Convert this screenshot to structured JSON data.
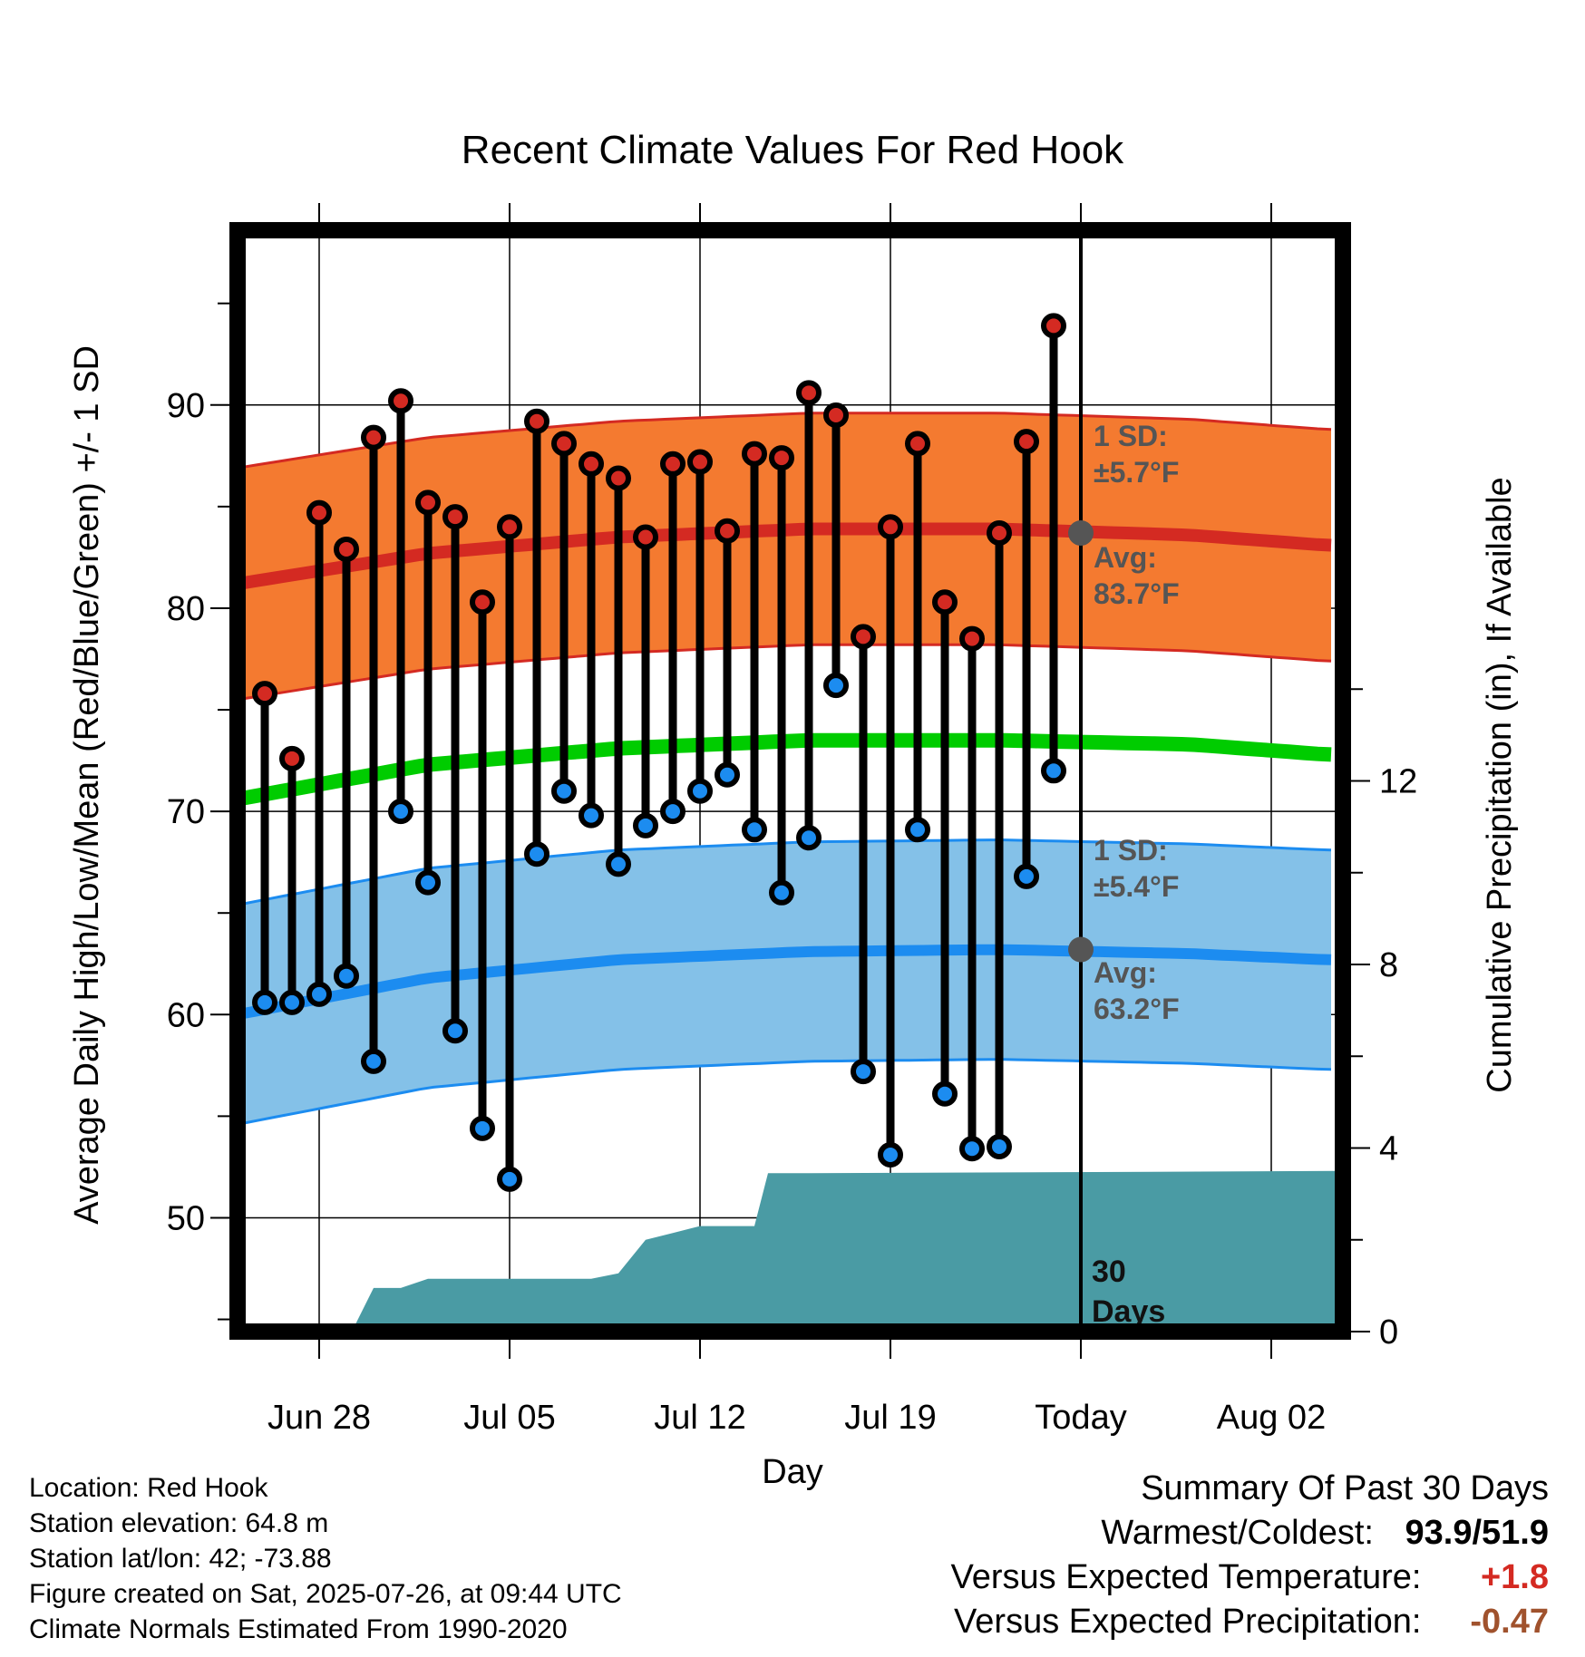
{
  "chart_data": {
    "type": "line",
    "title": "Recent Climate Values For Red Hook",
    "xlabel": "Day",
    "ylabel": "Average Daily High/Low/Mean (Red/Blue/Green) +/- 1 SD",
    "y2label": "Cumulative Precipitation (in), If Available",
    "x_ticks": [
      "Jun 28",
      "Jul 05",
      "Jul 12",
      "Jul 19",
      "Today",
      "Aug 02"
    ],
    "x_tick_days": [
      -28,
      -21,
      -14,
      -7,
      0,
      7
    ],
    "y_ticks": [
      50,
      60,
      70,
      80,
      90
    ],
    "y_range": [
      44.4,
      98.6
    ],
    "y2_ticks": [
      0,
      4,
      8,
      12
    ],
    "y2_range": [
      0,
      24
    ],
    "x_range_days": [
      -31.6,
      9.6
    ],
    "today_marker_label": "30 Days",
    "daily_highs": {
      "days": [
        -30,
        -29,
        -28,
        -27,
        -26,
        -25,
        -24,
        -23,
        -22,
        -21,
        -20,
        -19,
        -18,
        -17,
        -16,
        -15,
        -14,
        -13,
        -12,
        -11,
        -10,
        -9,
        -8,
        -7,
        -6,
        -5,
        -4,
        -3,
        -2,
        -1
      ],
      "values": [
        75.8,
        72.6,
        84.7,
        82.9,
        88.4,
        90.2,
        85.2,
        84.5,
        80.3,
        84.0,
        89.2,
        88.1,
        87.1,
        86.4,
        83.5,
        87.1,
        87.2,
        83.8,
        87.6,
        87.4,
        90.6,
        89.5,
        78.6,
        84.0,
        88.1,
        80.3,
        78.5,
        83.7,
        88.2,
        93.9
      ]
    },
    "daily_lows": {
      "days": [
        -30,
        -29,
        -28,
        -27,
        -26,
        -25,
        -24,
        -23,
        -22,
        -21,
        -20,
        -19,
        -18,
        -17,
        -16,
        -15,
        -14,
        -13,
        -12,
        -11,
        -10,
        -9,
        -8,
        -7,
        -6,
        -5,
        -4,
        -3,
        -2,
        -1
      ],
      "values": [
        60.6,
        60.6,
        61.0,
        61.9,
        57.7,
        70.0,
        66.5,
        59.2,
        54.4,
        51.9,
        67.9,
        71.0,
        69.8,
        67.4,
        69.3,
        70.0,
        71.0,
        71.8,
        69.1,
        66.0,
        68.7,
        76.2,
        57.2,
        53.1,
        69.1,
        56.1,
        53.4,
        53.5,
        66.8,
        72.0
      ]
    },
    "normal_high": {
      "days": [
        -31,
        -24,
        -17,
        -10,
        -3,
        4,
        9
      ],
      "values": [
        81.2,
        82.7,
        83.5,
        83.9,
        83.9,
        83.6,
        83.1
      ],
      "sd": 5.7
    },
    "normal_low": {
      "days": [
        -31,
        -24,
        -17,
        -10,
        -3,
        4,
        9
      ],
      "values": [
        60.0,
        61.8,
        62.7,
        63.1,
        63.2,
        63.0,
        62.7
      ],
      "sd": 5.4
    },
    "normal_mean": {
      "days": [
        -31,
        -24,
        -17,
        -10,
        -3,
        4,
        9
      ],
      "values": [
        70.6,
        72.3,
        73.1,
        73.5,
        73.5,
        73.3,
        72.8
      ]
    },
    "cumulative_precip": {
      "days": [
        -31.6,
        -26.8,
        -26,
        -25,
        -24,
        -23,
        -22,
        -18,
        -17,
        -16,
        -15,
        -14,
        -13,
        -12,
        -11.5,
        -10,
        9.6
      ],
      "values": [
        0,
        0,
        0.95,
        0.95,
        1.15,
        1.15,
        1.15,
        1.15,
        1.27,
        2.0,
        2.15,
        2.3,
        2.3,
        2.3,
        3.45,
        3.45,
        3.5
      ]
    },
    "annotations": {
      "high_sd_label": "1 SD:",
      "high_sd_value": "±5.7°F",
      "high_avg_label": "Avg:",
      "high_avg_value": "83.7°F",
      "low_sd_label": "1 SD:",
      "low_sd_value": "±5.4°F",
      "low_avg_label": "Avg:",
      "low_avg_value": "63.2°F",
      "today_avg_high": 83.7,
      "today_avg_low": 63.2
    },
    "colors": {
      "high_band": "#f47a30",
      "high_line": "#d42a22",
      "high_edge": "#d42a22",
      "low_band": "#84c1e8",
      "low_line": "#1c8cf0",
      "low_edge": "#1c8cf0",
      "mean_line": "#00cc00",
      "precip": "#4a9ba4",
      "high_dot": "#d42a22",
      "low_dot": "#1c8cf0",
      "avg_dot": "#555555"
    }
  },
  "footer": {
    "location": "Location: Red Hook",
    "elevation": "Station elevation: 64.8 m",
    "latlon": "Station lat/lon: 42; -73.88",
    "created": "Figure created on Sat, 2025-07-26, at 09:44 UTC",
    "normals": "Climate Normals Estimated From 1990-2020"
  },
  "summary": {
    "title": "Summary Of Past 30 Days",
    "warm_cold_label": "Warmest/Coldest:",
    "warm_cold_value": "93.9/51.9",
    "temp_label": "Versus Expected Temperature:",
    "temp_value": "+1.8",
    "temp_color": "#d42a22",
    "precip_label": "Versus Expected Precipitation:",
    "precip_value": "-0.47",
    "precip_color": "#a0522d"
  }
}
